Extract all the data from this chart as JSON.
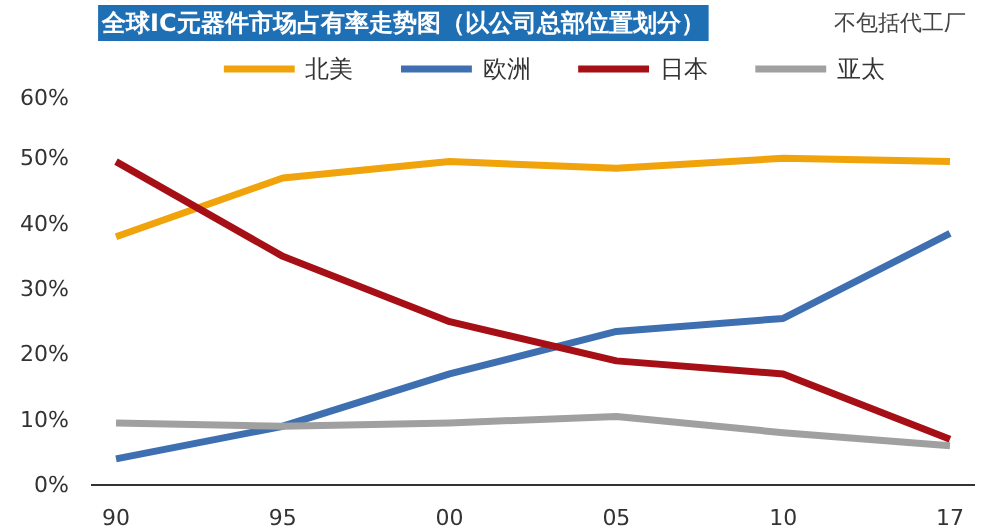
{
  "chart_data": {
    "type": "line",
    "title": "全球IC元器件市场占有率走势图（以公司总部位置划分）",
    "annotations": [
      "不包括代工厂"
    ],
    "categories": [
      "90",
      "95",
      "00",
      "05",
      "10",
      "17"
    ],
    "series": [
      {
        "name": "北美",
        "color": "#f0a30a",
        "values": [
          38,
          47,
          49.5,
          48.5,
          50,
          49.5
        ]
      },
      {
        "name": "欧洲",
        "color": "#3e6fb0",
        "values": [
          4,
          9,
          17,
          23.5,
          25.5,
          38.5
        ]
      },
      {
        "name": "日本",
        "color": "#a50f15",
        "values": [
          49.5,
          35,
          25,
          19,
          17,
          7
        ]
      },
      {
        "name": "亚太",
        "color": "#a0a0a0",
        "values": [
          9.5,
          9,
          9.5,
          10.5,
          8,
          6
        ]
      }
    ],
    "ylim": [
      0,
      60
    ],
    "yticks": [
      {
        "value": 0,
        "label": "0%"
      },
      {
        "value": 10,
        "label": "10%"
      },
      {
        "value": 20,
        "label": "20%"
      },
      {
        "value": 30,
        "label": "30%"
      },
      {
        "value": 40,
        "label": "40%"
      },
      {
        "value": 50,
        "label": "50%"
      },
      {
        "value": 60,
        "label": "60%"
      }
    ],
    "grid": false,
    "legend": "top",
    "marker": "none",
    "line_style": "solid"
  }
}
